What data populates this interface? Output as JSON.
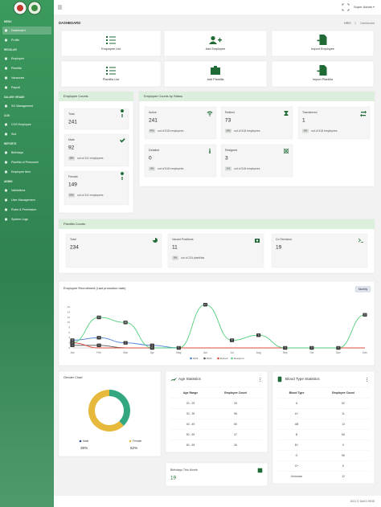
{
  "sidebar": {
    "sections": [
      {
        "label": "MENU",
        "items": [
          "Dashboard",
          "Profile"
        ]
      },
      {
        "label": "REGULAR",
        "items": [
          "Employee",
          "Plantilla",
          "Vacancies",
          "Payroll"
        ]
      },
      {
        "label": "SALARY GRADE",
        "items": [
          "SG Management"
        ]
      },
      {
        "label": "COS",
        "items": [
          "COS Employee",
          "Slot"
        ]
      },
      {
        "label": "REPORTS",
        "items": [
          "Birthdays",
          "Plantilla of Personnel",
          "Employee Item"
        ]
      },
      {
        "label": "ADMIN",
        "items": [
          "Validations",
          "User Management",
          "Roles & Permission",
          "System Logs"
        ]
      }
    ]
  },
  "topbar": {
    "user": "Super Admin"
  },
  "breadcrumb": {
    "page": "DASHBOARD",
    "trail": [
      "HRIS",
      "Dashboard"
    ]
  },
  "quick_links": [
    "Employee List",
    "Add Employee",
    "Import Employee",
    "Plantilla List",
    "Add Plantilla",
    "Import Plantilla"
  ],
  "employee_counts": {
    "title": "Employee Counts",
    "items": [
      {
        "label": "Total",
        "value": 241
      },
      {
        "label": "Male",
        "value": 92,
        "badge": "38%",
        "note": "out of 241 employees"
      },
      {
        "label": "Female",
        "value": 149,
        "badge": "62%",
        "note": "out of 241 employees"
      }
    ]
  },
  "status_counts": {
    "title": "Employee Counts by Status",
    "items": [
      {
        "label": "Active",
        "value": 241,
        "badge": "47%",
        "note": "out of 518 employees"
      },
      {
        "label": "Retired",
        "value": 73,
        "badge": "14%",
        "note": "out of 518 employees"
      },
      {
        "label": "Transferred",
        "value": 1,
        "badge": "0%",
        "note": "out of 518 employees"
      },
      {
        "label": "Detailed",
        "value": 0,
        "badge": "0%",
        "note": "out of 518 employees"
      },
      {
        "label": "Resigned",
        "value": 3,
        "badge": "1%",
        "note": "out of 518 employees"
      }
    ]
  },
  "plantilla_counts": {
    "title": "Plantilla Counts",
    "items": [
      {
        "label": "Total",
        "value": 234
      },
      {
        "label": "Vacant Positions",
        "value": 11,
        "badge": "5%",
        "note": "out of 234 plantillas"
      },
      {
        "label": "Co Terminus",
        "value": 19
      }
    ]
  },
  "recruitment_period": "Monthly",
  "chart_data": [
    {
      "type": "line",
      "title": "Employee Recruitment (Last promotion date)",
      "categories": [
        "Jan",
        "Feb",
        "Mar",
        "Apr",
        "May",
        "Jun",
        "Jul",
        "Aug",
        "Sep",
        "Oct",
        "Nov",
        "Dec"
      ],
      "series": [
        {
          "name": "2022",
          "color": "#4a7fd6",
          "values": [
            3,
            4,
            2,
            1,
            0,
            0,
            0,
            0,
            0,
            0,
            0,
            0
          ]
        },
        {
          "name": "2023",
          "color": "#555555",
          "values": [
            1,
            1,
            0,
            0,
            0,
            0,
            0,
            0,
            0,
            0,
            0,
            0
          ]
        },
        {
          "name": "Retired",
          "color": "#e0483c",
          "values": [
            2,
            0,
            0,
            0,
            0,
            0,
            0,
            0,
            0,
            0,
            0,
            0
          ]
        },
        {
          "name": "Resigned",
          "color": "#52cf7c",
          "values": [
            2,
            12,
            10,
            0,
            0,
            17,
            3,
            5,
            0,
            0,
            0,
            13
          ]
        }
      ],
      "ylim": [
        0,
        18
      ],
      "yticks": [
        0,
        2,
        4,
        6,
        8,
        10,
        12,
        14,
        16
      ],
      "legend": "bottom"
    },
    {
      "type": "pie",
      "title": "Gender Chart",
      "categories": [
        "Male",
        "Female"
      ],
      "values": [
        38,
        62
      ],
      "value_labels": [
        "38%",
        "62%"
      ],
      "colors": [
        "#33a880",
        "#e6b93c"
      ],
      "legend_colors": [
        "#2f4a8a",
        "#e6b93c"
      ]
    }
  ],
  "age_statistics": {
    "title": "Age Statistics",
    "columns": [
      "Age Range",
      "Employee Count"
    ],
    "rows": [
      [
        "20 - 29",
        33
      ],
      [
        "30 - 39",
        96
      ],
      [
        "40 - 49",
        65
      ],
      [
        "50 - 59",
        47
      ],
      [
        "60 - 69",
        26
      ]
    ]
  },
  "birthdays": {
    "label": "Birthdays This Month",
    "value": 19
  },
  "blood_type_statistics": {
    "title": "Blood Type Statistics",
    "columns": [
      "Blood Type",
      "Employee Count"
    ],
    "rows": [
      [
        "A",
        52
      ],
      [
        "A+",
        11
      ],
      [
        "AB",
        13
      ],
      [
        "B",
        65
      ],
      [
        "B+",
        9
      ],
      [
        "O",
        96
      ],
      [
        "O+",
        6
      ],
      [
        "Unknown",
        12
      ]
    ]
  },
  "footer": "2021 © DAVO HRIS"
}
